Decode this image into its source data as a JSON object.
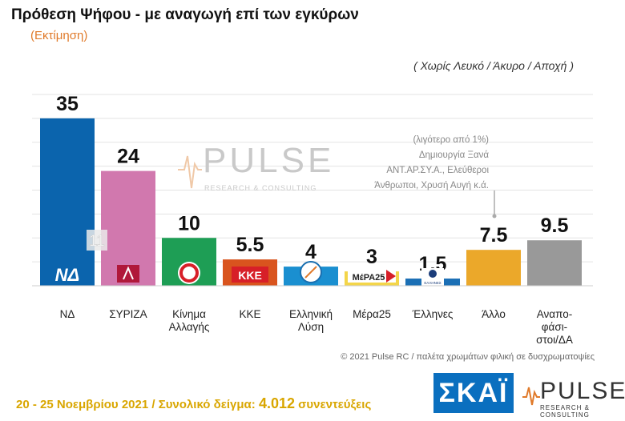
{
  "header": {
    "title": "Πρόθεση Ψήφου - με αναγωγή επί των εγκύρων",
    "subtitle": "(Εκτίμηση)",
    "note": "( Χωρίς Λευκό / Άκυρο / Αποχή )"
  },
  "chart_data": {
    "type": "bar",
    "categories": [
      "ΝΔ",
      "ΣΥΡΙΖΑ",
      "Κίνημα Αλλαγής",
      "ΚΚΕ",
      "Ελληνική Λύση",
      "Μέρα25",
      "Έλληνες",
      "Άλλο",
      "Αναπο-φάσι-στοι/ΔΑ"
    ],
    "category_lines": [
      [
        "ΝΔ"
      ],
      [
        "ΣΥΡΙΖΑ"
      ],
      [
        "Κίνημα",
        "Αλλαγής"
      ],
      [
        "ΚΚΕ"
      ],
      [
        "Ελληνική",
        "Λύση"
      ],
      [
        "Μέρα25"
      ],
      [
        "Έλληνες"
      ],
      [
        "Άλλο"
      ],
      [
        "Αναπο-",
        "φάσι-",
        "στοι/ΔΑ"
      ]
    ],
    "values": [
      35,
      24,
      10,
      5.5,
      4,
      3,
      1.5,
      7.5,
      9.5
    ],
    "value_labels": [
      "35",
      "24",
      "10",
      "5.5",
      "4",
      "3",
      "1.5",
      "7.5",
      "9.5"
    ],
    "colors": [
      "#0b64ad",
      "#d178ae",
      "#1e9e55",
      "#d9541e",
      "#1a8fd0",
      "#f3d54a",
      "#1b6fb5",
      "#eba82a",
      "#999999"
    ],
    "ylim": [
      0,
      40
    ],
    "gap_annotation": {
      "between": [
        0,
        1
      ],
      "value": "11"
    },
    "other_annotation": [
      "(λιγότερο από 1%)",
      "Δημιουργία Ξανά",
      "ΑΝΤ.ΑΡ.ΣΥ.Α., Ελεύθεροι",
      "Άνθρωποι, Χρυσή Αυγή   κ.ά."
    ],
    "party_logos": [
      "ΝΔ",
      "",
      "",
      "ΚΚΕ",
      "",
      "ΜέΡΑ25",
      "ΕΛΛΗΝΕΣ",
      "",
      ""
    ]
  },
  "watermark": {
    "name": "PULSE",
    "tag": "RESEARCH & CONSULTING"
  },
  "footer": {
    "copyright": "© 2021 Pulse RC   /   παλέτα χρωμάτων φιλική σε δυσχρωματοψίες",
    "dates": "20 - 25  Νοεμβρίου 2021  /  Συνολικό δείγμα:",
    "sample": "4.012",
    "sample_suffix": "συνεντεύξεις",
    "skai_logo": "ΣΚΑΪ",
    "pulse_logo": "PULSE",
    "pulse_tag": "RESEARCH & CONSULTING"
  }
}
